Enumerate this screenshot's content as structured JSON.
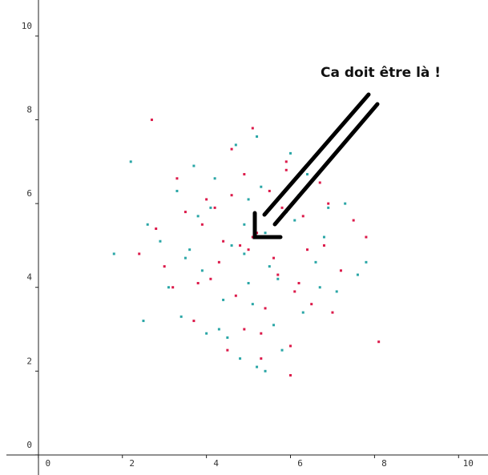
{
  "chart_data": {
    "type": "scatter",
    "annotation": "Ca doit être là !",
    "xlim": [
      -0.76,
      10.7
    ],
    "ylim": [
      -0.48,
      10.86
    ],
    "xticks": [
      0,
      2,
      4,
      6,
      8,
      10
    ],
    "yticks": [
      0,
      2,
      4,
      6,
      8,
      10
    ],
    "series": [
      {
        "color": "#dc1a4a",
        "x": [
          5.1,
          4.3,
          5.8,
          6.2,
          3.9,
          4.7,
          5.5,
          6.8,
          4.1,
          5.0,
          3.5,
          6.5,
          4.9,
          5.3,
          2.8,
          7.2,
          4.4,
          5.9,
          3.2,
          6.0,
          5.6,
          4.6,
          7.5,
          3.7,
          5.2,
          4.0,
          6.3,
          2.4,
          5.4,
          4.8,
          6.7,
          3.3,
          5.7,
          8.1,
          4.2,
          6.1,
          3.0,
          5.9,
          4.5,
          7.0,
          2.7,
          6.4,
          4.9,
          5.1,
          3.8,
          7.8,
          4.6,
          5.3,
          6.9,
          6.0
        ],
        "values": [
          5.2,
          4.6,
          5.9,
          4.1,
          5.5,
          3.8,
          6.3,
          5.0,
          4.2,
          4.9,
          5.8,
          3.6,
          6.7,
          2.9,
          5.4,
          4.4,
          5.1,
          6.8,
          4.0,
          2.6,
          4.7,
          7.3,
          5.6,
          3.2,
          5.3,
          6.1,
          5.7,
          4.8,
          3.5,
          5.0,
          6.5,
          6.6,
          4.3,
          2.7,
          5.9,
          3.9,
          4.5,
          7.0,
          2.5,
          3.4,
          8.0,
          4.9,
          3.0,
          7.8,
          4.1,
          5.2,
          6.2,
          2.3,
          6.0,
          1.9
        ]
      },
      {
        "color": "#2aa6a6",
        "x": [
          4.9,
          5.4,
          3.6,
          6.1,
          4.4,
          5.7,
          2.9,
          6.6,
          5.0,
          4.1,
          7.1,
          3.4,
          5.2,
          6.4,
          4.7,
          1.8,
          5.9,
          3.9,
          6.8,
          4.5,
          5.3,
          7.6,
          3.1,
          5.6,
          4.2,
          6.0,
          2.6,
          5.1,
          4.8,
          7.3,
          3.7,
          5.5,
          6.3,
          2.2,
          4.6,
          5.8,
          3.3,
          6.9,
          5.0,
          4.3,
          7.8,
          2.5,
          6.2,
          5.2,
          3.8,
          4.0,
          6.7,
          5.4,
          4.9,
          3.5
        ],
        "values": [
          4.8,
          5.3,
          4.9,
          5.6,
          3.7,
          4.2,
          5.1,
          4.6,
          6.1,
          5.9,
          3.9,
          3.3,
          2.1,
          6.7,
          7.4,
          4.8,
          5.8,
          4.4,
          5.2,
          2.8,
          6.4,
          4.3,
          4.0,
          3.1,
          6.6,
          7.2,
          5.5,
          3.6,
          2.3,
          6.0,
          6.9,
          4.5,
          3.4,
          7.0,
          5.0,
          2.5,
          6.3,
          5.9,
          4.1,
          3.0,
          4.6,
          3.2,
          6.2,
          7.6,
          5.7,
          2.9,
          4.0,
          2.0,
          5.5,
          4.7
        ]
      }
    ]
  }
}
